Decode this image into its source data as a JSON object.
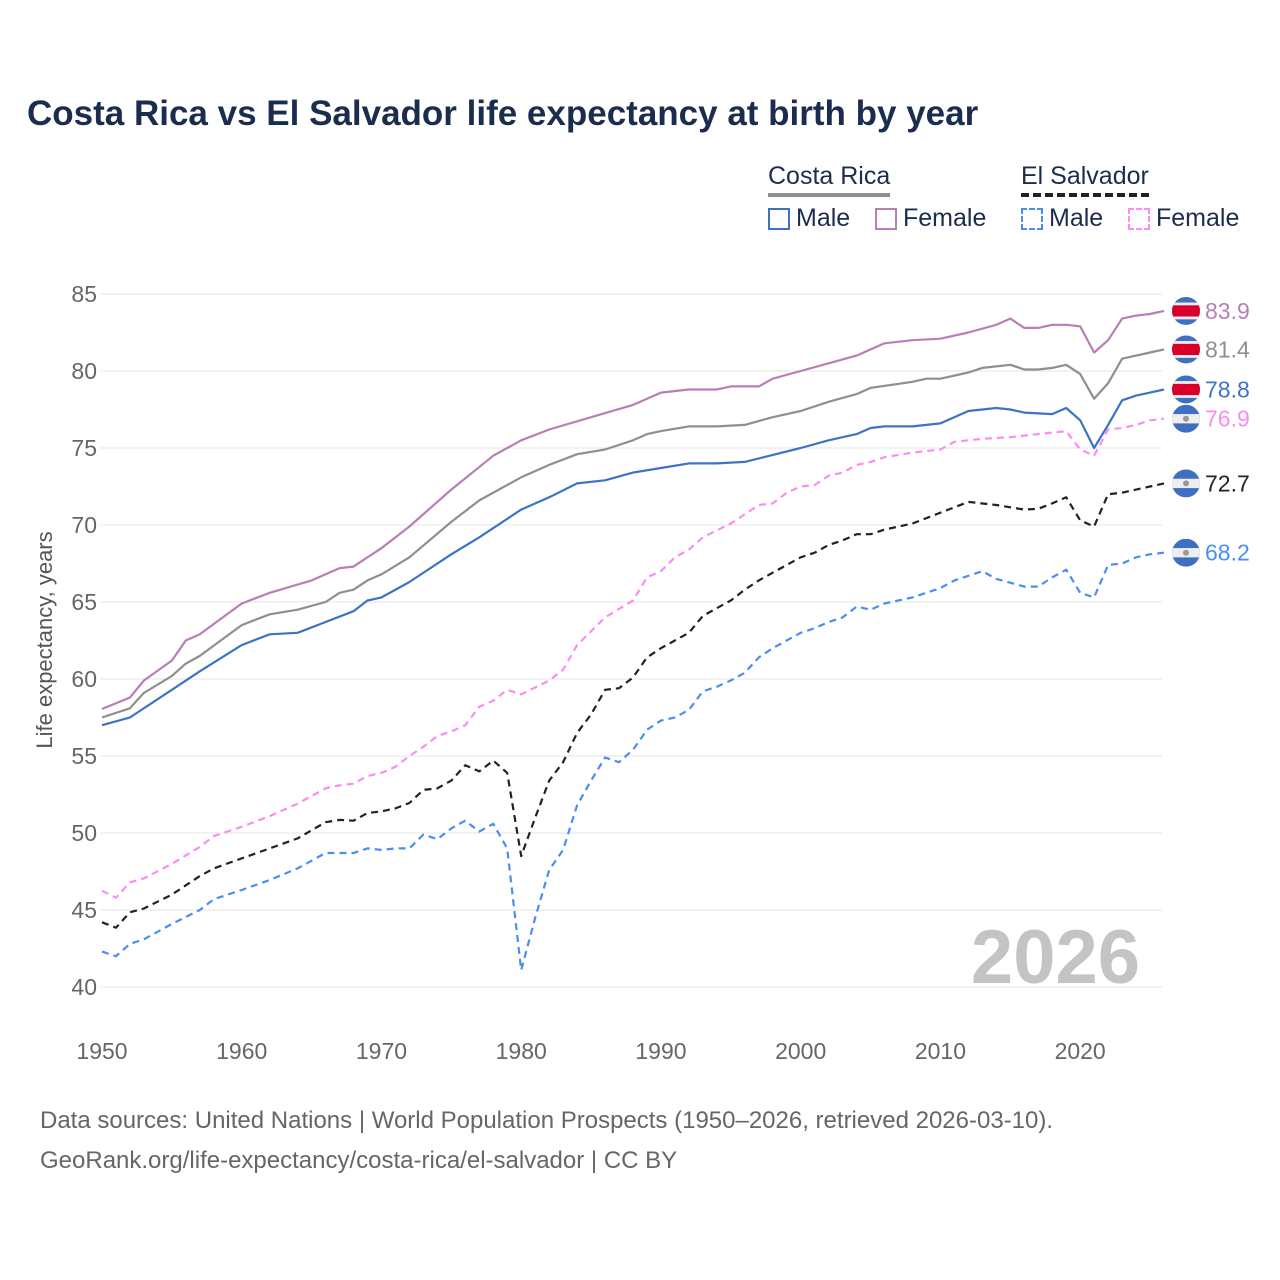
{
  "chart_data": {
    "type": "line",
    "title": "Costa Rica vs El Salvador life expectancy at birth by year",
    "xlabel": "",
    "ylabel": "Life expectancy, years",
    "xlim": [
      1950,
      2026
    ],
    "ylim": [
      40,
      85
    ],
    "yticks": [
      40,
      45,
      50,
      55,
      60,
      65,
      70,
      75,
      80,
      85
    ],
    "xticks": [
      1950,
      1960,
      1970,
      1980,
      1990,
      2000,
      2010,
      2020
    ],
    "grid": true,
    "legend_placement": "top-right",
    "year_watermark": "2026",
    "legend": {
      "groups": [
        {
          "name": "Costa Rica",
          "items": [
            "Male",
            "Female"
          ]
        },
        {
          "name": "El Salvador",
          "items": [
            "Male",
            "Female"
          ]
        }
      ]
    },
    "series": [
      {
        "name": "Costa Rica Female",
        "country": "Costa Rica",
        "color": "#b77fb5",
        "dash": false,
        "end_label": "83.9",
        "x": [
          1950,
          1952,
          1953,
          1955,
          1956,
          1957,
          1960,
          1962,
          1965,
          1967,
          1968,
          1970,
          1972,
          1975,
          1978,
          1980,
          1982,
          1985,
          1988,
          1990,
          1992,
          1994,
          1995,
          1997,
          1998,
          2000,
          2002,
          2004,
          2006,
          2008,
          2010,
          2012,
          2014,
          2015,
          2016,
          2017,
          2018,
          2019,
          2020,
          2021,
          2022,
          2023,
          2024,
          2025,
          2026
        ],
        "y": [
          58.05,
          58.8,
          59.9,
          61.2,
          62.5,
          62.9,
          64.9,
          65.6,
          66.4,
          67.2,
          67.3,
          68.5,
          69.9,
          72.3,
          74.5,
          75.5,
          76.2,
          77.0,
          77.8,
          78.6,
          78.8,
          78.8,
          79.0,
          79.0,
          79.5,
          80.0,
          80.5,
          81.0,
          81.8,
          82.0,
          82.1,
          82.5,
          83.0,
          83.4,
          82.8,
          82.8,
          83.0,
          83.0,
          82.9,
          81.2,
          82.0,
          83.4,
          83.6,
          83.7,
          83.9
        ]
      },
      {
        "name": "Costa Rica",
        "country": "Costa Rica",
        "color": "#8f8f8f",
        "dash": false,
        "end_label": "81.4",
        "x": [
          1950,
          1952,
          1953,
          1955,
          1956,
          1957,
          1960,
          1962,
          1964,
          1966,
          1967,
          1968,
          1969,
          1970,
          1972,
          1975,
          1977,
          1980,
          1982,
          1984,
          1986,
          1988,
          1989,
          1990,
          1992,
          1994,
          1996,
          1998,
          2000,
          2002,
          2004,
          2005,
          2008,
          2009,
          2010,
          2012,
          2013,
          2014,
          2015,
          2016,
          2017,
          2018,
          2019,
          2020,
          2021,
          2022,
          2023,
          2024,
          2025,
          2026
        ],
        "y": [
          57.5,
          58.1,
          59.1,
          60.2,
          61.0,
          61.5,
          63.5,
          64.2,
          64.5,
          65.0,
          65.6,
          65.8,
          66.4,
          66.8,
          67.9,
          70.2,
          71.6,
          73.1,
          73.9,
          74.6,
          74.9,
          75.5,
          75.9,
          76.1,
          76.4,
          76.4,
          76.5,
          77.0,
          77.4,
          78.0,
          78.5,
          78.9,
          79.3,
          79.5,
          79.5,
          79.9,
          80.2,
          80.3,
          80.4,
          80.1,
          80.1,
          80.2,
          80.4,
          79.8,
          78.2,
          79.2,
          80.8,
          81.0,
          81.2,
          81.4
        ]
      },
      {
        "name": "Costa Rica Male",
        "country": "Costa Rica",
        "color": "#3d73c4",
        "dash": false,
        "end_label": "78.8",
        "x": [
          1950,
          1952,
          1955,
          1957,
          1960,
          1962,
          1964,
          1966,
          1968,
          1969,
          1970,
          1972,
          1975,
          1977,
          1980,
          1982,
          1984,
          1986,
          1988,
          1990,
          1992,
          1994,
          1996,
          2000,
          2002,
          2004,
          2005,
          2006,
          2008,
          2010,
          2012,
          2014,
          2015,
          2016,
          2018,
          2019,
          2020,
          2021,
          2022,
          2023,
          2024,
          2025,
          2026
        ],
        "y": [
          57.0,
          57.5,
          59.3,
          60.5,
          62.2,
          62.9,
          63.0,
          63.7,
          64.4,
          65.1,
          65.3,
          66.3,
          68.1,
          69.2,
          71.0,
          71.8,
          72.7,
          72.9,
          73.4,
          73.7,
          74.0,
          74.0,
          74.1,
          75.0,
          75.5,
          75.9,
          76.3,
          76.4,
          76.4,
          76.6,
          77.4,
          77.6,
          77.5,
          77.3,
          77.2,
          77.6,
          76.8,
          75.0,
          76.5,
          78.1,
          78.4,
          78.6,
          78.8
        ]
      },
      {
        "name": "El Salvador Female",
        "country": "El Salvador",
        "color": "#fb8cf2",
        "dash": true,
        "end_label": "76.9",
        "x": [
          1950,
          1951,
          1952,
          1953,
          1955,
          1957,
          1958,
          1960,
          1962,
          1964,
          1966,
          1967,
          1968,
          1969,
          1970,
          1971,
          1972,
          1973,
          1974,
          1975,
          1976,
          1977,
          1978,
          1979,
          1980,
          1982,
          1983,
          1984,
          1986,
          1988,
          1989,
          1990,
          1991,
          1992,
          1993,
          1995,
          1997,
          1998,
          1999,
          2000,
          2001,
          2002,
          2003,
          2004,
          2005,
          2006,
          2008,
          2010,
          2011,
          2013,
          2015,
          2017,
          2019,
          2020,
          2021,
          2022,
          2023,
          2024,
          2025,
          2026
        ],
        "y": [
          46.25,
          45.8,
          46.8,
          47.05,
          48.0,
          49.1,
          49.8,
          50.4,
          51.1,
          51.9,
          52.9,
          53.1,
          53.2,
          53.7,
          53.9,
          54.3,
          55.0,
          55.6,
          56.3,
          56.6,
          57.0,
          58.2,
          58.6,
          59.3,
          59.0,
          59.9,
          60.6,
          62.2,
          64.0,
          65.1,
          66.6,
          67.0,
          67.9,
          68.4,
          69.2,
          70.1,
          71.3,
          71.4,
          72.1,
          72.5,
          72.6,
          73.2,
          73.4,
          73.9,
          74.1,
          74.4,
          74.7,
          74.9,
          75.4,
          75.6,
          75.7,
          75.9,
          76.1,
          74.9,
          74.5,
          76.2,
          76.3,
          76.5,
          76.8,
          76.9
        ]
      },
      {
        "name": "El Salvador",
        "country": "El Salvador",
        "color": "#222222",
        "dash": true,
        "end_label": "72.7",
        "x": [
          1950,
          1951,
          1952,
          1953,
          1955,
          1957,
          1958,
          1960,
          1962,
          1964,
          1966,
          1967,
          1968,
          1969,
          1970,
          1971,
          1972,
          1973,
          1974,
          1975,
          1976,
          1977,
          1978,
          1979,
          1980,
          1981,
          1982,
          1983,
          1984,
          1985,
          1986,
          1987,
          1988,
          1989,
          1990,
          1991,
          1992,
          1993,
          1994,
          1995,
          1996,
          1997,
          1998,
          1999,
          2000,
          2001,
          2002,
          2003,
          2004,
          2005,
          2006,
          2008,
          2010,
          2012,
          2014,
          2016,
          2017,
          2018,
          2019,
          2020,
          2021,
          2022,
          2023,
          2024,
          2025,
          2026
        ],
        "y": [
          44.2,
          43.85,
          44.85,
          45.1,
          46.0,
          47.2,
          47.7,
          48.35,
          49.0,
          49.65,
          50.7,
          50.85,
          50.8,
          51.3,
          51.4,
          51.6,
          51.95,
          52.8,
          52.9,
          53.4,
          54.4,
          54.0,
          54.7,
          53.9,
          48.5,
          51.0,
          53.4,
          54.6,
          56.5,
          57.7,
          59.3,
          59.4,
          60.1,
          61.4,
          62.0,
          62.5,
          63.0,
          64.1,
          64.6,
          65.1,
          65.8,
          66.4,
          66.9,
          67.4,
          67.9,
          68.2,
          68.7,
          69.0,
          69.4,
          69.4,
          69.7,
          70.1,
          70.8,
          71.5,
          71.3,
          71.0,
          71.05,
          71.4,
          71.8,
          70.3,
          69.9,
          72.0,
          72.1,
          72.3,
          72.5,
          72.7
        ]
      },
      {
        "name": "El Salvador Male",
        "country": "El Salvador",
        "color": "#4a8ef0",
        "dash": true,
        "end_label": "68.2",
        "x": [
          1950,
          1951,
          1952,
          1953,
          1955,
          1957,
          1958,
          1960,
          1962,
          1964,
          1966,
          1967,
          1968,
          1969,
          1970,
          1971,
          1972,
          1973,
          1974,
          1975,
          1976,
          1977,
          1978,
          1979,
          1980,
          1981,
          1982,
          1983,
          1984,
          1985,
          1986,
          1987,
          1988,
          1989,
          1990,
          1991,
          1992,
          1993,
          1994,
          1995,
          1996,
          1997,
          1998,
          1999,
          2000,
          2001,
          2002,
          2003,
          2004,
          2005,
          2006,
          2008,
          2010,
          2011,
          2013,
          2014,
          2016,
          2017,
          2018,
          2019,
          2020,
          2021,
          2022,
          2023,
          2024,
          2025,
          2026
        ],
        "y": [
          42.3,
          42.0,
          42.8,
          43.1,
          44.1,
          45.0,
          45.7,
          46.3,
          46.95,
          47.7,
          48.7,
          48.7,
          48.7,
          49.0,
          48.9,
          49.0,
          49.0,
          49.9,
          49.6,
          50.3,
          50.8,
          50.1,
          50.6,
          49.0,
          41.1,
          44.5,
          47.6,
          48.9,
          51.8,
          53.4,
          54.9,
          54.6,
          55.4,
          56.7,
          57.3,
          57.5,
          58.0,
          59.2,
          59.5,
          59.9,
          60.4,
          61.4,
          62.0,
          62.5,
          63.0,
          63.3,
          63.7,
          64.0,
          64.7,
          64.5,
          64.9,
          65.3,
          65.9,
          66.4,
          67.0,
          66.5,
          66.0,
          66.0,
          66.6,
          67.1,
          65.6,
          65.3,
          67.4,
          67.5,
          67.9,
          68.1,
          68.2
        ]
      }
    ]
  },
  "footer": {
    "line1": "Data sources: United Nations | World Population Prospects (1950–2026, retrieved 2026-03-10).",
    "line2": "GeoRank.org/life-expectancy/costa-rica/el-salvador | CC BY"
  }
}
